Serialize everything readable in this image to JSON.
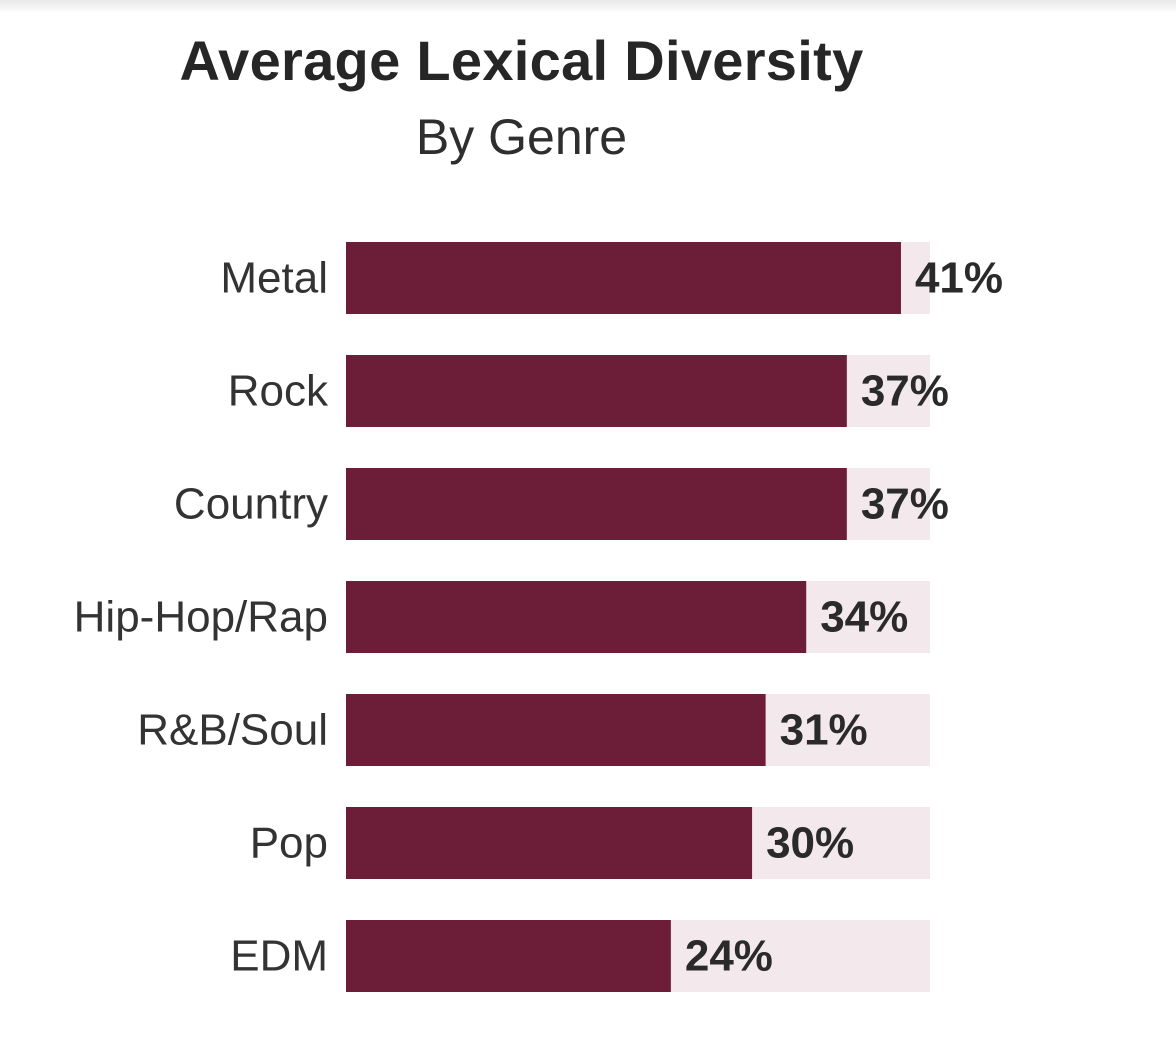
{
  "chart_data": {
    "type": "bar",
    "orientation": "horizontal",
    "title": "Average Lexical Diversity",
    "subtitle": "By Genre",
    "categories": [
      "Metal",
      "Rock",
      "Country",
      "Hip-Hop/Rap",
      "R&B/Soul",
      "Pop",
      "EDM"
    ],
    "values": [
      41,
      37,
      37,
      34,
      31,
      30,
      24
    ],
    "value_labels": [
      "41%",
      "37%",
      "37%",
      "34%",
      "31%",
      "30%",
      "24%"
    ],
    "unit": "%",
    "xlim": [
      0,
      56
    ],
    "xlabel": "",
    "ylabel": "",
    "grid": false,
    "legend": "none",
    "colors": {
      "bar": "#6c1d37",
      "track": "#f3e8eb",
      "label": "#333333",
      "value": "#2a2a2a"
    }
  }
}
